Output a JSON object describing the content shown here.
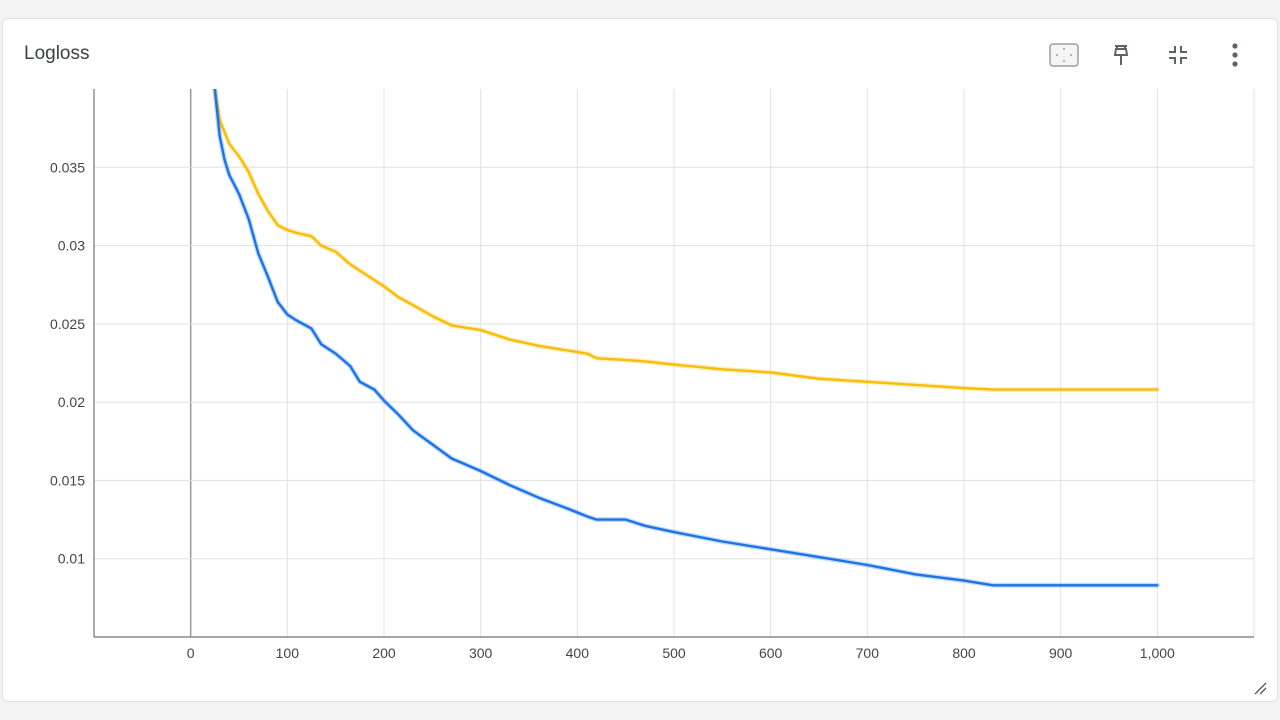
{
  "panel": {
    "title": "Logloss"
  },
  "toolbar": {
    "icons": [
      "fit-to-data-icon",
      "pin-icon",
      "collapse-icon",
      "more-vert-icon"
    ]
  },
  "colors": {
    "series_orange": "#fbbc04",
    "series_blue": "#1a73e8",
    "grid": "#e0e0e0",
    "axis": "#9e9e9e"
  },
  "chart_data": {
    "type": "line",
    "title": "Logloss",
    "xlabel": "",
    "ylabel": "",
    "xlim": [
      -100,
      1100
    ],
    "ylim": [
      0.005,
      0.04
    ],
    "x_ticks": [
      0,
      100,
      200,
      300,
      400,
      500,
      600,
      700,
      800,
      900,
      1000
    ],
    "x_tick_labels": [
      "0",
      "100",
      "200",
      "300",
      "400",
      "500",
      "600",
      "700",
      "800",
      "900",
      "1,000"
    ],
    "y_ticks": [
      0.01,
      0.015,
      0.02,
      0.025,
      0.03,
      0.035
    ],
    "y_tick_labels": [
      "0.01",
      "0.015",
      "0.02",
      "0.025",
      "0.03",
      "0.035"
    ],
    "grid": true,
    "series": [
      {
        "color": "#fbbc04",
        "x": [
          25,
          30,
          40,
          50,
          60,
          70,
          80,
          90,
          100,
          110,
          125,
          135,
          150,
          165,
          180,
          200,
          215,
          230,
          250,
          270,
          300,
          330,
          360,
          390,
          410,
          420,
          450,
          470,
          500,
          550,
          600,
          650,
          700,
          750,
          800,
          830,
          900,
          1000
        ],
        "y": [
          0.04,
          0.038,
          0.0365,
          0.0357,
          0.0347,
          0.0333,
          0.0322,
          0.0313,
          0.031,
          0.0308,
          0.0306,
          0.03,
          0.0296,
          0.0288,
          0.0282,
          0.0274,
          0.0267,
          0.0262,
          0.0255,
          0.0249,
          0.0246,
          0.024,
          0.0236,
          0.0233,
          0.0231,
          0.0228,
          0.0227,
          0.0226,
          0.0224,
          0.0221,
          0.0219,
          0.0215,
          0.0213,
          0.0211,
          0.0209,
          0.0208,
          0.0208,
          0.0208
        ]
      },
      {
        "color": "#1a73e8",
        "x": [
          25,
          30,
          35,
          40,
          50,
          60,
          70,
          80,
          90,
          100,
          110,
          125,
          135,
          150,
          165,
          175,
          190,
          200,
          215,
          230,
          250,
          270,
          300,
          330,
          360,
          390,
          410,
          420,
          450,
          470,
          500,
          550,
          600,
          650,
          700,
          750,
          800,
          830,
          900,
          1000
        ],
        "y": [
          0.04,
          0.037,
          0.0355,
          0.0345,
          0.0333,
          0.0317,
          0.0295,
          0.028,
          0.0264,
          0.0256,
          0.0252,
          0.0247,
          0.0237,
          0.0231,
          0.0223,
          0.0213,
          0.0208,
          0.0201,
          0.0192,
          0.0182,
          0.0173,
          0.0164,
          0.0156,
          0.0147,
          0.0139,
          0.0132,
          0.0127,
          0.0125,
          0.0125,
          0.0121,
          0.0117,
          0.0111,
          0.0106,
          0.0101,
          0.0096,
          0.009,
          0.0086,
          0.0083,
          0.0083,
          0.0083
        ]
      }
    ]
  }
}
